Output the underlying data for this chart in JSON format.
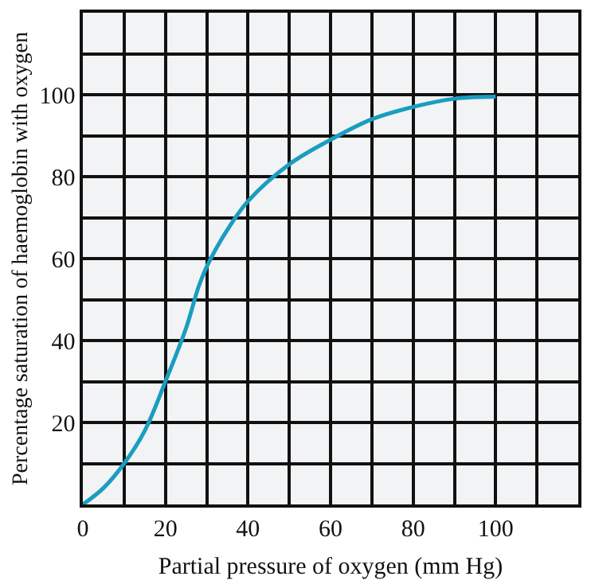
{
  "chart_data": {
    "type": "line",
    "xlabel": "Partial pressure of oxygen (mm Hg)",
    "ylabel": "Percentage saturation of haemoglobin with oxygen",
    "x": [
      0,
      5,
      10,
      15,
      20,
      25,
      28,
      30,
      35,
      40,
      50,
      60,
      70,
      80,
      90,
      100
    ],
    "series": [
      {
        "color": "#1a9dc0",
        "values": [
          0,
          4,
          10,
          18,
          30,
          43,
          53,
          58,
          67,
          74,
          83,
          89,
          94,
          97,
          99,
          99.5
        ]
      }
    ],
    "xlim": [
      0,
      120
    ],
    "ylim": [
      0,
      120
    ],
    "xticks": [
      0,
      {
        "value": 10,
        "label": null
      },
      20,
      {
        "value": 30,
        "label": null
      },
      40,
      {
        "value": 50,
        "label": null
      },
      60,
      {
        "value": 70,
        "label": null
      },
      80,
      {
        "value": 90,
        "label": null
      },
      100,
      {
        "value": 110,
        "label": null
      },
      {
        "value": 120,
        "label": null
      }
    ],
    "yticks": [
      {
        "value": 0,
        "label": null
      },
      {
        "value": 10,
        "label": null
      },
      20,
      {
        "value": 30,
        "label": null
      },
      40,
      {
        "value": 50,
        "label": null
      },
      60,
      {
        "value": 70,
        "label": null
      },
      80,
      {
        "value": 90,
        "label": null
      },
      100,
      {
        "value": 110,
        "label": null
      },
      {
        "value": 120,
        "label": null
      }
    ],
    "grid": true,
    "marker": "none",
    "line_style": "solid"
  }
}
